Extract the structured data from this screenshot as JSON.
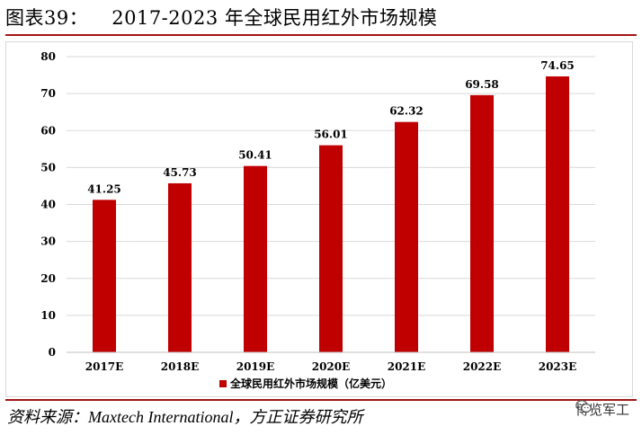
{
  "title": {
    "prefix": "图表39：",
    "text": "2017-2023 年全球民用红外市场规模"
  },
  "source": "资料来源：Maxtech International，方正证券研究所",
  "badge": {
    "icon": "wechat-icon",
    "text": "博览军工"
  },
  "colors": {
    "bar": "#c00000",
    "grid": "#d9d9d9",
    "accent": "#a31515"
  },
  "chart_data": {
    "type": "bar",
    "categories": [
      "2017E",
      "2018E",
      "2019E",
      "2020E",
      "2021E",
      "2022E",
      "2023E"
    ],
    "series": [
      {
        "name": "全球民用红外市场规模（亿美元）",
        "values": [
          41.25,
          45.73,
          50.41,
          56.01,
          62.32,
          69.58,
          74.65
        ]
      }
    ],
    "value_labels": [
      "41.25",
      "45.73",
      "50.41",
      "56.01",
      "62.32",
      "69.58",
      "74.65"
    ],
    "ylim": [
      0,
      80
    ],
    "yticks": [
      0,
      10,
      20,
      30,
      40,
      50,
      60,
      70,
      80
    ],
    "grid": true,
    "legend_position": "bottom-center",
    "xlabel": "",
    "ylabel": ""
  }
}
